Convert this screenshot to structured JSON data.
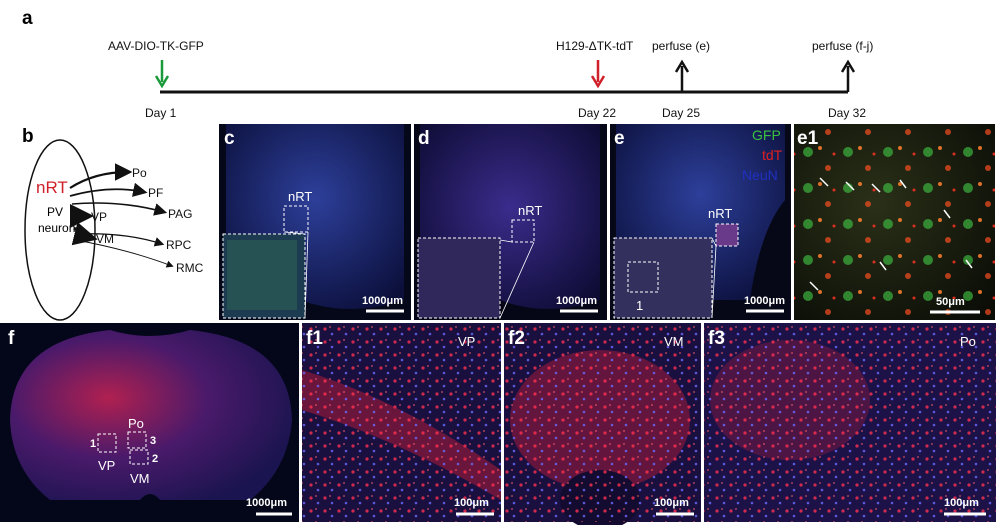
{
  "panel_a": {
    "label": "a",
    "injections": [
      {
        "name": "AAV-DIO-TK-GFP",
        "day": "Day 1"
      },
      {
        "name": "H129-ΔTK-tdT",
        "day": "Day 22"
      }
    ],
    "perfusions": [
      {
        "name": "perfuse (e)",
        "day": "Day 25"
      },
      {
        "name": "perfuse (f-j)",
        "day": "Day 32"
      }
    ]
  },
  "panel_b": {
    "label": "b",
    "source": "nRT",
    "cell_line1": "PV",
    "cell_line2": "neuron",
    "targets": [
      "Po",
      "PF",
      "PAG",
      "VP",
      "VM",
      "RPC",
      "RMC"
    ]
  },
  "panel_c": {
    "label": "c",
    "region": "nRT",
    "scale": "1000μm"
  },
  "panel_d": {
    "label": "d",
    "region": "nRT",
    "scale": "1000μm"
  },
  "panel_e": {
    "label": "e",
    "channels": [
      "GFP",
      "tdT",
      "NeuN"
    ],
    "region": "nRT",
    "inset": "1",
    "scale": "1000μm"
  },
  "panel_e1": {
    "label": "e1",
    "scale": "50μm"
  },
  "panel_f": {
    "label": "f",
    "regions": [
      "Po",
      "VP",
      "VM"
    ],
    "boxes": [
      "1",
      "2",
      "3"
    ],
    "scale": "1000μm"
  },
  "panel_f1": {
    "label": "f1",
    "region": "VP",
    "scale": "100μm"
  },
  "panel_f2": {
    "label": "f2",
    "region": "VM",
    "scale": "100μm"
  },
  "panel_f3": {
    "label": "f3",
    "region": "Po",
    "scale": "100μm"
  }
}
